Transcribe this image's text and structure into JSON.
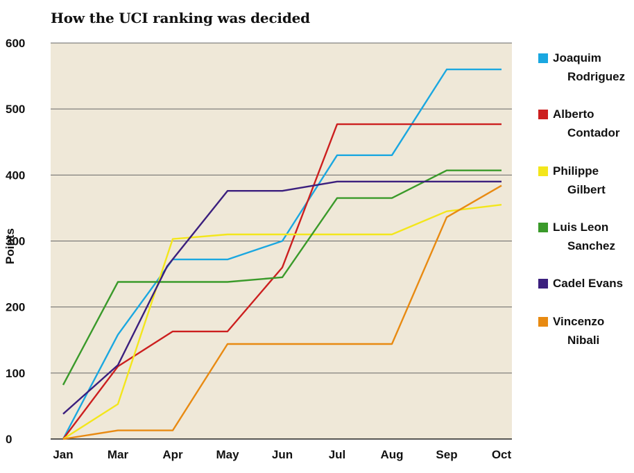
{
  "title": "How the UCI ranking was decided",
  "chart_data": {
    "type": "line",
    "title": "How the UCI ranking was decided",
    "xlabel": "",
    "ylabel": "Points",
    "categories": [
      "Jan",
      "Mar",
      "Apr",
      "May",
      "Jun",
      "Jul",
      "Aug",
      "Sep",
      "Oct"
    ],
    "ylim": [
      0,
      600
    ],
    "yticks": [
      0,
      100,
      200,
      300,
      400,
      500,
      600
    ],
    "grid": true,
    "legend_position": "right",
    "background": "#efe8d8",
    "series": [
      {
        "name": "Joaquim Rodriguez",
        "color": "#1aa7e0",
        "points": [
          [
            0,
            0
          ],
          [
            1,
            158
          ],
          [
            2,
            272
          ],
          [
            3,
            272
          ],
          [
            4,
            300
          ],
          [
            5,
            430
          ],
          [
            6,
            430
          ],
          [
            7,
            560
          ],
          [
            8,
            560
          ]
        ]
      },
      {
        "name": "Alberto Contador",
        "color": "#cc1f1f",
        "points": [
          [
            0,
            0
          ],
          [
            1,
            110
          ],
          [
            2,
            163
          ],
          [
            3,
            163
          ],
          [
            4,
            260
          ],
          [
            5,
            477
          ],
          [
            6,
            477
          ],
          [
            7,
            477
          ],
          [
            8,
            477
          ]
        ]
      },
      {
        "name": "Philippe Gilbert",
        "color": "#f3e61b",
        "points": [
          [
            0,
            0
          ],
          [
            1,
            53
          ],
          [
            2,
            303
          ],
          [
            3,
            310
          ],
          [
            4,
            310
          ],
          [
            5,
            310
          ],
          [
            6,
            310
          ],
          [
            7,
            345
          ],
          [
            8,
            355
          ]
        ]
      },
      {
        "name": "Luis Leon Sanchez",
        "color": "#3a9a2a",
        "points": [
          [
            0,
            82
          ],
          [
            1,
            238
          ],
          [
            2,
            238
          ],
          [
            3,
            238
          ],
          [
            4,
            245
          ],
          [
            5,
            365
          ],
          [
            6,
            365
          ],
          [
            7,
            407
          ],
          [
            8,
            407
          ]
        ]
      },
      {
        "name": "Cadel Evans",
        "color": "#3b1f7e",
        "points": [
          [
            0,
            38
          ],
          [
            1,
            112
          ],
          [
            1.9,
            262
          ],
          [
            3,
            376
          ],
          [
            4,
            376
          ],
          [
            5,
            390
          ],
          [
            6,
            390
          ],
          [
            7,
            390
          ],
          [
            8,
            390
          ]
        ]
      },
      {
        "name": "Vincenzo Nibali",
        "color": "#e88a12",
        "points": [
          [
            0,
            0
          ],
          [
            1,
            13
          ],
          [
            2,
            13
          ],
          [
            3,
            144
          ],
          [
            4,
            144
          ],
          [
            5,
            144
          ],
          [
            6,
            144
          ],
          [
            7,
            336
          ],
          [
            8,
            384
          ]
        ]
      }
    ]
  },
  "legend": [
    {
      "label": "Joaquim Rodriguez"
    },
    {
      "label": "Alberto Contador"
    },
    {
      "label": "Philippe Gilbert"
    },
    {
      "label": "Luis Leon Sanchez"
    },
    {
      "label": "Cadel Evans"
    },
    {
      "label": "Vincenzo Nibali"
    }
  ]
}
